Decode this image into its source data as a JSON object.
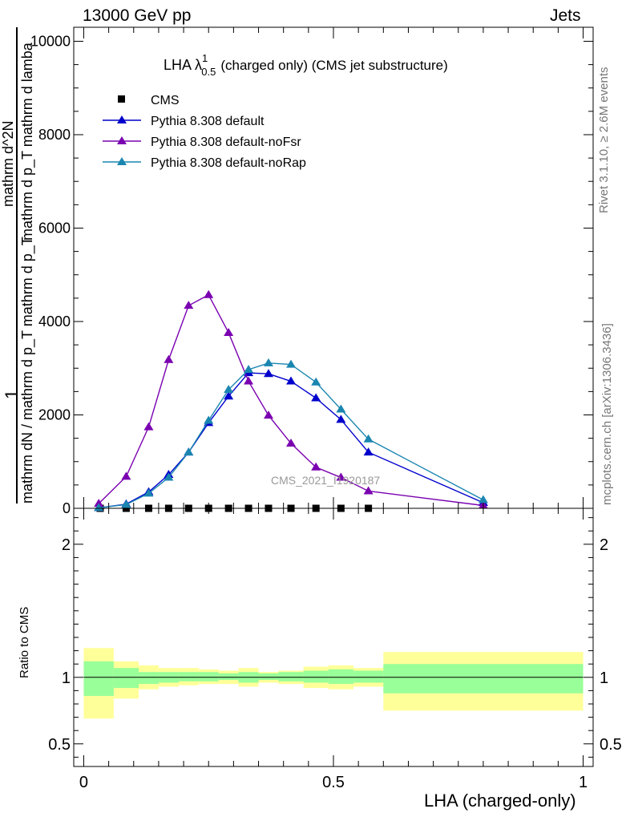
{
  "header": {
    "left": "13000 GeV pp",
    "right": "Jets"
  },
  "side_labels": {
    "rivet": "Rivet 3.1.10, ≥ 2.6M events",
    "mcplots": "mcplots.cern.ch [arXiv:1306.3436]"
  },
  "y_axis_main_label": "1 / mathrm d N / mathrm d p_T mathrm d p_T  mathrm d^2 N / mathrm d lambda",
  "y_axis_main_parts": {
    "one": "1",
    "denominator": "mathrm dN / mathrm d p_T mathrm d p_T",
    "numerator": "mathrm d^2N",
    "d_lambda": "mathrm d p_T  mathrm d lamba"
  },
  "y_axis_ratio_label": "Ratio to CMS",
  "x_axis_label": "LHA (charged-only)",
  "watermark": "CMS_2021_I1920187",
  "plot_title": {
    "prefix": "LHA λ",
    "sup": "1",
    "sub": "0.5",
    "suffix": "(charged only) (CMS jet substructure)"
  },
  "colors": {
    "cms": "#000000",
    "default": "#0000cc",
    "noFsr": "#7a00b0",
    "noRap": "#1a86b0",
    "band_inner": "#99ff99",
    "band_outer": "#ffff99"
  },
  "chart_data": [
    {
      "type": "line",
      "panel": "main",
      "xlim": [
        -0.02,
        1.02
      ],
      "ylim": [
        0,
        10300
      ],
      "y_ticks": [
        0,
        2000,
        4000,
        6000,
        8000,
        10000
      ],
      "y_tick_labels": [
        "0",
        "2000",
        "4000",
        "6000",
        "8000",
        "10000"
      ],
      "legend": [
        "CMS",
        "Pythia 8.308 default",
        "Pythia 8.308 default-noFsr",
        "Pythia 8.308 default-noRap"
      ],
      "legend_position": "top-left",
      "series": [
        {
          "name": "CMS",
          "marker": "square",
          "x": [
            0.033,
            0.085,
            0.13,
            0.17,
            0.21,
            0.25,
            0.29,
            0.33,
            0.37,
            0.415,
            0.465,
            0.515,
            0.57
          ],
          "y": [
            0,
            0,
            0,
            0,
            0,
            0,
            0,
            0,
            0,
            0,
            0,
            0,
            0
          ]
        },
        {
          "name": "Pythia 8.308 default",
          "marker": "triangle",
          "x": [
            0.03,
            0.085,
            0.13,
            0.17,
            0.21,
            0.25,
            0.29,
            0.33,
            0.37,
            0.415,
            0.465,
            0.515,
            0.57,
            0.8
          ],
          "y": [
            10,
            90,
            350,
            720,
            1200,
            1830,
            2400,
            2900,
            2880,
            2720,
            2360,
            1900,
            1200,
            120
          ]
        },
        {
          "name": "Pythia 8.308 default-noFsr",
          "marker": "triangle",
          "x": [
            0.03,
            0.085,
            0.13,
            0.17,
            0.21,
            0.25,
            0.29,
            0.33,
            0.37,
            0.415,
            0.465,
            0.515,
            0.57,
            0.8
          ],
          "y": [
            100,
            680,
            1740,
            3180,
            4340,
            4570,
            3760,
            2720,
            1990,
            1390,
            880,
            660,
            370,
            60
          ]
        },
        {
          "name": "Pythia 8.308 default-noRap",
          "marker": "triangle",
          "x": [
            0.03,
            0.085,
            0.13,
            0.17,
            0.21,
            0.25,
            0.29,
            0.33,
            0.37,
            0.415,
            0.465,
            0.515,
            0.57,
            0.8
          ],
          "y": [
            10,
            80,
            320,
            660,
            1200,
            1880,
            2540,
            2970,
            3110,
            3080,
            2700,
            2120,
            1480,
            180
          ]
        }
      ]
    },
    {
      "type": "area",
      "panel": "ratio",
      "ylabel": "Ratio to CMS",
      "xlim": [
        -0.02,
        1.02
      ],
      "ylim": [
        0.33,
        2.27
      ],
      "x_ticks": [
        0,
        0.5,
        1
      ],
      "x_tick_labels": [
        "0",
        "0.5",
        "1"
      ],
      "y_ticks": [
        0.5,
        1,
        2
      ],
      "y_tick_labels": [
        "0.5",
        "1",
        "2"
      ],
      "reference_line": 1,
      "bins": [
        {
          "x0": 0.0,
          "x1": 0.06,
          "inner": [
            0.86,
            1.12
          ],
          "outer": [
            0.69,
            1.22
          ]
        },
        {
          "x0": 0.06,
          "x1": 0.11,
          "inner": [
            0.92,
            1.07
          ],
          "outer": [
            0.84,
            1.12
          ]
        },
        {
          "x0": 0.11,
          "x1": 0.15,
          "inner": [
            0.95,
            1.04
          ],
          "outer": [
            0.91,
            1.09
          ]
        },
        {
          "x0": 0.15,
          "x1": 0.19,
          "inner": [
            0.96,
            1.04
          ],
          "outer": [
            0.93,
            1.07
          ]
        },
        {
          "x0": 0.19,
          "x1": 0.23,
          "inner": [
            0.97,
            1.04
          ],
          "outer": [
            0.94,
            1.07
          ]
        },
        {
          "x0": 0.23,
          "x1": 0.27,
          "inner": [
            0.97,
            1.04
          ],
          "outer": [
            0.95,
            1.06
          ]
        },
        {
          "x0": 0.27,
          "x1": 0.31,
          "inner": [
            0.98,
            1.03
          ],
          "outer": [
            0.95,
            1.05
          ]
        },
        {
          "x0": 0.31,
          "x1": 0.35,
          "inner": [
            0.96,
            1.04
          ],
          "outer": [
            0.93,
            1.07
          ]
        },
        {
          "x0": 0.35,
          "x1": 0.39,
          "inner": [
            0.98,
            1.03
          ],
          "outer": [
            0.96,
            1.04
          ]
        },
        {
          "x0": 0.39,
          "x1": 0.44,
          "inner": [
            0.97,
            1.04
          ],
          "outer": [
            0.95,
            1.05
          ]
        },
        {
          "x0": 0.44,
          "x1": 0.49,
          "inner": [
            0.96,
            1.05
          ],
          "outer": [
            0.92,
            1.08
          ]
        },
        {
          "x0": 0.49,
          "x1": 0.54,
          "inner": [
            0.95,
            1.06
          ],
          "outer": [
            0.91,
            1.09
          ]
        },
        {
          "x0": 0.54,
          "x1": 0.6,
          "inner": [
            0.96,
            1.05
          ],
          "outer": [
            0.93,
            1.07
          ]
        },
        {
          "x0": 0.6,
          "x1": 1.0,
          "inner": [
            0.88,
            1.1
          ],
          "outer": [
            0.75,
            1.19
          ]
        }
      ]
    }
  ]
}
